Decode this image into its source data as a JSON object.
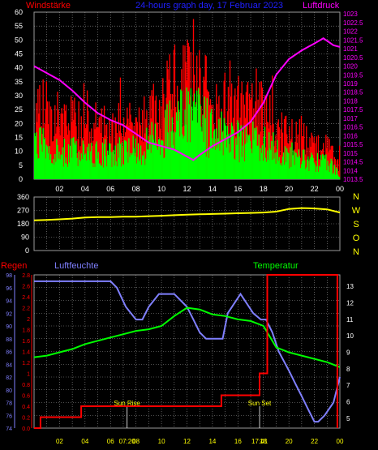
{
  "title": "24-hours graph day, 17 Februar 2023",
  "colors": {
    "background": "#000000",
    "grid": "#9a9a9a",
    "wind_avg": "#00ff00",
    "wind_gust": "#ff0000",
    "pressure": "#ff00ff",
    "wind_dir": "#ffff00",
    "rain": "#ff0000",
    "humidity": "#8080ff",
    "temperature": "#00ff00",
    "wind_dir_axis_text": "#ffff00",
    "tick_text": "#ffffff",
    "small_tick_text": "#ffff00"
  },
  "hour_labels": [
    "02",
    "04",
    "06",
    "08",
    "10",
    "12",
    "14",
    "16",
    "18",
    "20",
    "22",
    "00"
  ],
  "chart_data": [
    {
      "type": "bar",
      "name": "wind_pressure",
      "left_axis_label": "Windstärke",
      "right_axis_label": "Luftdruck",
      "left_ticks": [
        0,
        5,
        10,
        15,
        20,
        25,
        30,
        35,
        40,
        45,
        50,
        55,
        60
      ],
      "right_ticks": [
        "1013.5",
        "1014",
        "1014.5",
        "1015",
        "1015.5",
        "1016",
        "1016.5",
        "1017",
        "1017.5",
        "1018",
        "1018.5",
        "1019",
        "1019.5",
        "1020",
        "1020.5",
        "1021",
        "1021.5",
        "1022",
        "1022.5",
        "1023"
      ],
      "left_ylim": [
        0,
        60
      ],
      "right_ylim": [
        1013.5,
        1023.1
      ],
      "x_range_hours": [
        0,
        24
      ],
      "wind_gust_anchors": [
        [
          0,
          30
        ],
        [
          1,
          27
        ],
        [
          2,
          24
        ],
        [
          3,
          25
        ],
        [
          4,
          20
        ],
        [
          5,
          22
        ],
        [
          6,
          20
        ],
        [
          7,
          22
        ],
        [
          8,
          21
        ],
        [
          9,
          25
        ],
        [
          10,
          30
        ],
        [
          11,
          38
        ],
        [
          12,
          40
        ],
        [
          13,
          38
        ],
        [
          14,
          32
        ],
        [
          15,
          30
        ],
        [
          16,
          28
        ],
        [
          17,
          28
        ],
        [
          18,
          27
        ],
        [
          19,
          20
        ],
        [
          20,
          17
        ],
        [
          21,
          18
        ],
        [
          22,
          12
        ],
        [
          23,
          13
        ],
        [
          24,
          5
        ]
      ],
      "wind_avg_anchors": [
        [
          0,
          15
        ],
        [
          1,
          14
        ],
        [
          2,
          11
        ],
        [
          3,
          12
        ],
        [
          4,
          10
        ],
        [
          5,
          11
        ],
        [
          6,
          11
        ],
        [
          7,
          12
        ],
        [
          8,
          12
        ],
        [
          9,
          15
        ],
        [
          10,
          18
        ],
        [
          11,
          24
        ],
        [
          12,
          26
        ],
        [
          13,
          25
        ],
        [
          14,
          20
        ],
        [
          15,
          18
        ],
        [
          16,
          17
        ],
        [
          17,
          16
        ],
        [
          18,
          16
        ],
        [
          19,
          12
        ],
        [
          20,
          10
        ],
        [
          21,
          10
        ],
        [
          22,
          7
        ],
        [
          23,
          7
        ],
        [
          24,
          2
        ]
      ],
      "pressure_points": [
        [
          0,
          1020
        ],
        [
          1,
          1019.6
        ],
        [
          2,
          1019.2
        ],
        [
          3,
          1018.6
        ],
        [
          4,
          1017.9
        ],
        [
          5,
          1017.3
        ],
        [
          6,
          1016.9
        ],
        [
          7,
          1016.6
        ],
        [
          8,
          1016.1
        ],
        [
          9,
          1015.6
        ],
        [
          10,
          1015.4
        ],
        [
          11,
          1015.2
        ],
        [
          12,
          1014.8
        ],
        [
          12.5,
          1014.6
        ],
        [
          13,
          1014.9
        ],
        [
          14,
          1015.4
        ],
        [
          15,
          1015.8
        ],
        [
          16,
          1016.2
        ],
        [
          17,
          1016.8
        ],
        [
          18,
          1017.9
        ],
        [
          19,
          1019.5
        ],
        [
          20,
          1020.4
        ],
        [
          21,
          1020.9
        ],
        [
          22,
          1021.3
        ],
        [
          22.7,
          1021.6
        ],
        [
          23.5,
          1021.2
        ],
        [
          24,
          1021.1
        ]
      ]
    },
    {
      "type": "line",
      "name": "wind_direction",
      "left_ticks": [
        0,
        90,
        180,
        270,
        360
      ],
      "right_labels": [
        "N",
        "W",
        "S",
        "O",
        "N"
      ],
      "ylim": [
        0,
        360
      ],
      "points": [
        [
          0,
          203
        ],
        [
          1,
          206
        ],
        [
          2,
          210
        ],
        [
          3,
          215
        ],
        [
          4,
          222
        ],
        [
          5,
          225
        ],
        [
          6,
          225
        ],
        [
          7,
          228
        ],
        [
          8,
          228
        ],
        [
          9,
          231
        ],
        [
          10,
          234
        ],
        [
          11,
          238
        ],
        [
          12,
          241
        ],
        [
          13,
          244
        ],
        [
          14,
          246
        ],
        [
          15,
          248
        ],
        [
          16,
          251
        ],
        [
          17,
          253
        ],
        [
          18,
          256
        ],
        [
          19,
          262
        ],
        [
          20,
          280
        ],
        [
          21,
          286
        ],
        [
          22,
          283
        ],
        [
          23,
          277
        ],
        [
          24,
          256
        ]
      ]
    },
    {
      "type": "line",
      "name": "rain_humidity_temperature",
      "rain_label": "Regen",
      "humidity_label": "Luftfeuchte",
      "temperature_label": "Temperatur",
      "humidity_ticks": [
        74,
        76,
        78,
        80,
        82,
        84,
        86,
        88,
        90,
        92,
        94,
        96,
        98
      ],
      "rain_ticks": [
        "0.0",
        "0.2",
        "0.4",
        "0.6",
        "0.8",
        "1",
        "1.2",
        "1.4",
        "1.6",
        "1.8",
        "2",
        "2.2",
        "2.4",
        "2.6",
        "2.8"
      ],
      "temperature_ticks": [
        5,
        6,
        7,
        8,
        9,
        10,
        11,
        12,
        13
      ],
      "humidity_ylim": [
        74,
        98
      ],
      "rain_ylim": [
        0,
        2.8
      ],
      "temperature_ylim": [
        4.4,
        13.7
      ],
      "sun_rise_label": "Sun Rise",
      "sun_set_label": "Sun Set",
      "sun_rise_hour": 7.3,
      "sun_set_hour": 17.7,
      "sun_rise_time": "07:20",
      "sun_set_time": "17:41",
      "rain_points": [
        [
          0,
          0
        ],
        [
          0.5,
          0
        ],
        [
          0.5,
          0.2
        ],
        [
          3.7,
          0.2
        ],
        [
          3.7,
          0.4
        ],
        [
          14.7,
          0.4
        ],
        [
          14.7,
          0.6
        ],
        [
          17.7,
          0.6
        ],
        [
          17.7,
          1.0
        ],
        [
          18.3,
          1.0
        ],
        [
          18.3,
          2.8
        ],
        [
          23.8,
          2.8
        ],
        [
          23.8,
          0
        ]
      ],
      "humidity_points": [
        [
          0,
          97
        ],
        [
          6,
          97
        ],
        [
          6.5,
          96
        ],
        [
          7.2,
          93
        ],
        [
          8,
          91
        ],
        [
          8.5,
          91
        ],
        [
          9,
          93
        ],
        [
          9.8,
          95
        ],
        [
          11,
          95
        ],
        [
          12,
          93
        ],
        [
          12.5,
          91
        ],
        [
          13,
          89
        ],
        [
          13.5,
          88
        ],
        [
          14.8,
          88
        ],
        [
          15.2,
          92
        ],
        [
          16.2,
          95
        ],
        [
          17.2,
          92
        ],
        [
          17.8,
          91
        ],
        [
          18.2,
          91
        ],
        [
          18.7,
          89
        ],
        [
          19.2,
          86
        ],
        [
          20,
          83
        ],
        [
          20.5,
          81
        ],
        [
          21,
          79
        ],
        [
          21.5,
          77
        ],
        [
          22,
          75
        ],
        [
          22.3,
          75
        ],
        [
          22.8,
          76
        ],
        [
          23.5,
          78
        ],
        [
          24,
          82
        ]
      ],
      "temperature_points": [
        [
          0,
          8.7
        ],
        [
          1,
          8.8
        ],
        [
          2,
          9.0
        ],
        [
          3,
          9.2
        ],
        [
          4,
          9.5
        ],
        [
          5,
          9.7
        ],
        [
          6,
          9.9
        ],
        [
          7,
          10.1
        ],
        [
          8,
          10.3
        ],
        [
          9,
          10.4
        ],
        [
          10,
          10.6
        ],
        [
          11,
          11.2
        ],
        [
          12,
          11.7
        ],
        [
          13,
          11.6
        ],
        [
          14,
          11.3
        ],
        [
          15,
          11.2
        ],
        [
          16,
          11.0
        ],
        [
          17,
          10.9
        ],
        [
          18,
          10.6
        ],
        [
          19,
          9.3
        ],
        [
          20,
          9.0
        ],
        [
          21,
          8.8
        ],
        [
          22,
          8.6
        ],
        [
          23,
          8.4
        ],
        [
          24,
          8.1
        ]
      ]
    }
  ]
}
